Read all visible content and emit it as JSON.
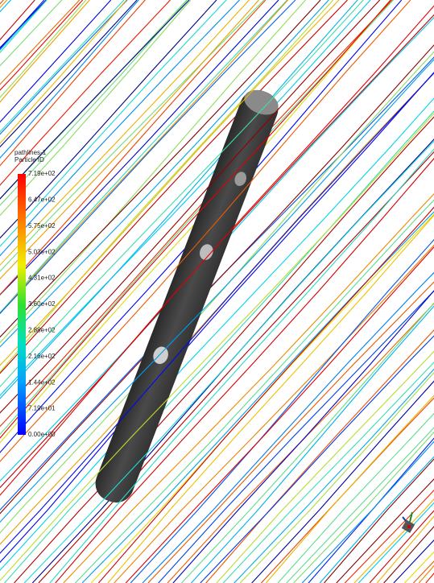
{
  "legend": {
    "title": "pathlines-1",
    "subtitle": "Particle ID",
    "labels": [
      "7.19e+02",
      "6.47e+02",
      "5.75e+02",
      "5.03e+02",
      "4.31e+02",
      "3.60e+02",
      "2.88e+02",
      "2.16e+02",
      "1.44e+02",
      "7.19e+01",
      "0.00e+00"
    ]
  }
}
